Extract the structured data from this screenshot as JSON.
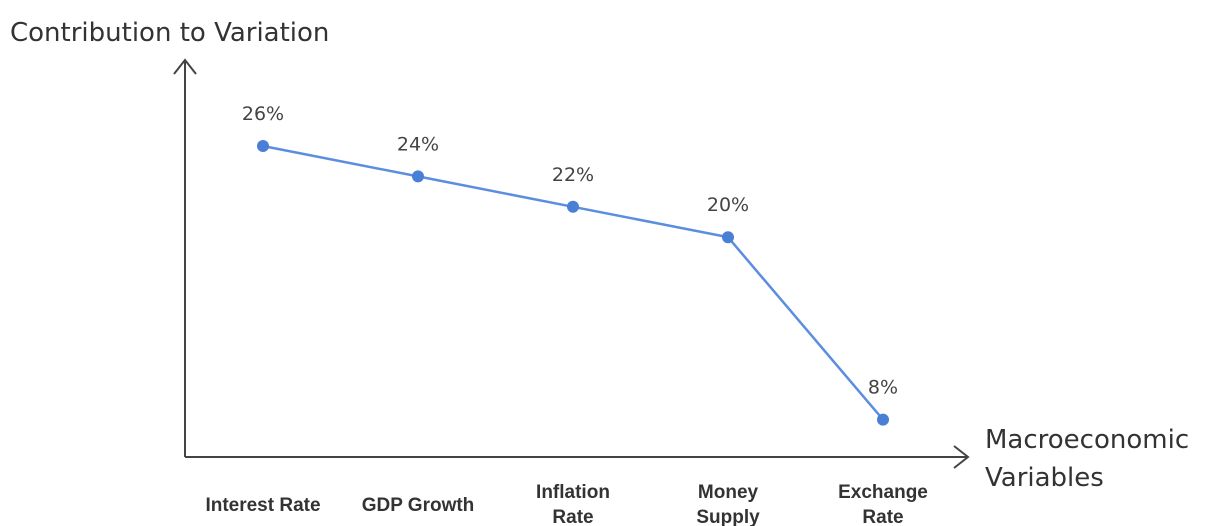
{
  "chart_data": {
    "type": "line",
    "ylabel": "Contribution to Variation",
    "xlabel": "Macroeconomic Variables",
    "categories": [
      "Interest Rate",
      "GDP Growth",
      "Inflation Rate",
      "Money Supply",
      "Exchange Rate"
    ],
    "values": [
      26,
      24,
      22,
      20,
      8
    ],
    "data_labels": [
      "26%",
      "24%",
      "22%",
      "20%",
      "8%"
    ],
    "unit": "%",
    "grid": false,
    "legend": "none",
    "colors": {
      "line": "#5b8de0",
      "marker": "#4a7fd6",
      "axis": "#444444",
      "text": "#333333"
    }
  }
}
